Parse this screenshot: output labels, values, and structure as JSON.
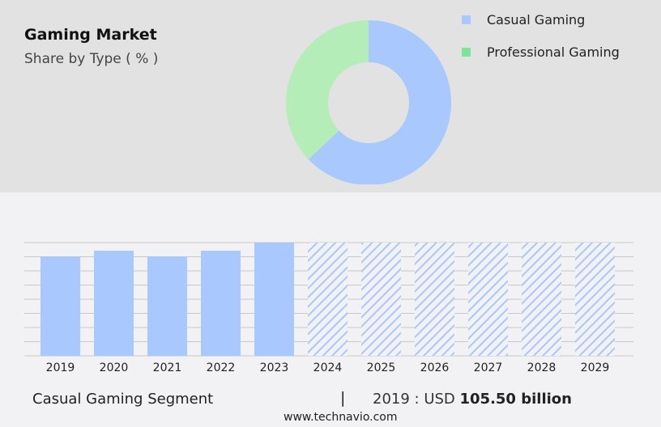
{
  "title": "Gaming Market",
  "subtitle": "Share by Type ( % )",
  "chart_data": [
    {
      "type": "pie",
      "variant": "donut",
      "series": [
        {
          "name": "Casual Gaming",
          "value": 63,
          "color": "#a8c8fe"
        },
        {
          "name": "Professional Gaming",
          "value": 37,
          "color": "#b5edb8"
        }
      ],
      "legend": [
        {
          "label": "Casual Gaming",
          "color": "#a8c8fe"
        },
        {
          "label": "Professional Gaming",
          "color": "#7ee49a"
        }
      ],
      "legend_placement": "right"
    },
    {
      "type": "bar",
      "categories": [
        "2019",
        "2020",
        "2021",
        "2022",
        "2023",
        "2024",
        "2025",
        "2026",
        "2027",
        "2028",
        "2029"
      ],
      "values": [
        105.5,
        111.5,
        105.5,
        111.5,
        120.1,
        null,
        null,
        null,
        null,
        null,
        null
      ],
      "forecast": [
        false,
        false,
        false,
        false,
        false,
        true,
        true,
        true,
        true,
        true,
        true
      ],
      "forecast_style": "hatched",
      "color": "#a8c8fe",
      "grid": true,
      "ylim": [
        0,
        120.1
      ]
    }
  ],
  "footer": {
    "segment": "Casual Gaming Segment",
    "separator": "|",
    "prefix": "2019 : USD ",
    "value": "105.50 billion"
  },
  "url": "www.technavio.com"
}
